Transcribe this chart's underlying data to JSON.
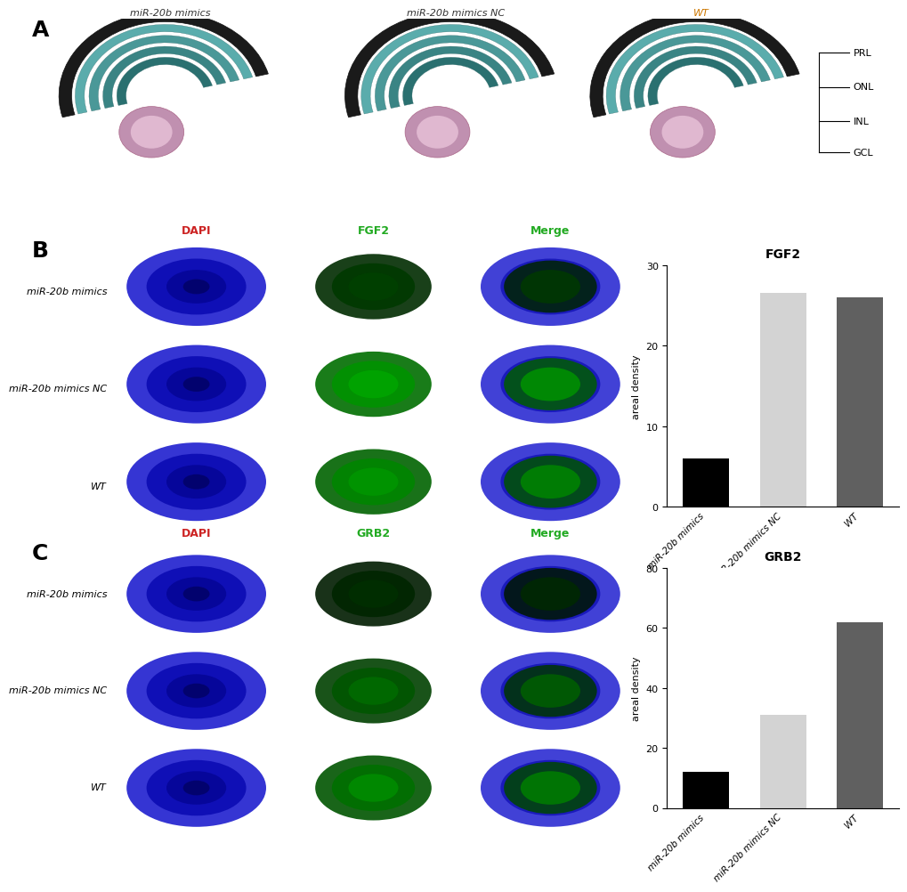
{
  "panel_A_labels": [
    "miR-20b mimics",
    "miR-20b mimics NC",
    "WT"
  ],
  "panel_A_annotations": [
    "PRL",
    "ONL",
    "INL",
    "GCL"
  ],
  "panel_B_row_labels": [
    "miR-20b mimics",
    "miR-20b mimics NC",
    "WT"
  ],
  "panel_B_col_labels": [
    "DAPI",
    "FGF2",
    "Merge"
  ],
  "panel_C_row_labels": [
    "miR-20b mimics",
    "miR-20b mimics NC",
    "WT"
  ],
  "panel_C_col_labels": [
    "DAPI",
    "GRB2",
    "Merge"
  ],
  "fgf2_values": [
    6.0,
    26.5,
    26.0
  ],
  "fgf2_ylim": [
    0,
    30
  ],
  "fgf2_yticks": [
    0,
    10,
    20,
    30
  ],
  "fgf2_title": "FGF2",
  "fgf2_ylabel": "areal density",
  "fgf2_bar_colors": [
    "#000000",
    "#d3d3d3",
    "#606060"
  ],
  "grb2_values": [
    12.0,
    31.0,
    62.0
  ],
  "grb2_ylim": [
    0,
    80
  ],
  "grb2_yticks": [
    0,
    20,
    40,
    60,
    80
  ],
  "grb2_title": "GRB2",
  "grb2_ylabel": "areal density",
  "grb2_bar_colors": [
    "#000000",
    "#d3d3d3",
    "#606060"
  ],
  "bar_x_labels": [
    "miR-20b mimics",
    "miR-20b mimics NC",
    "WT"
  ],
  "bg_color": "#ffffff",
  "panel_label_fontsize": 18,
  "tick_fontsize": 9
}
